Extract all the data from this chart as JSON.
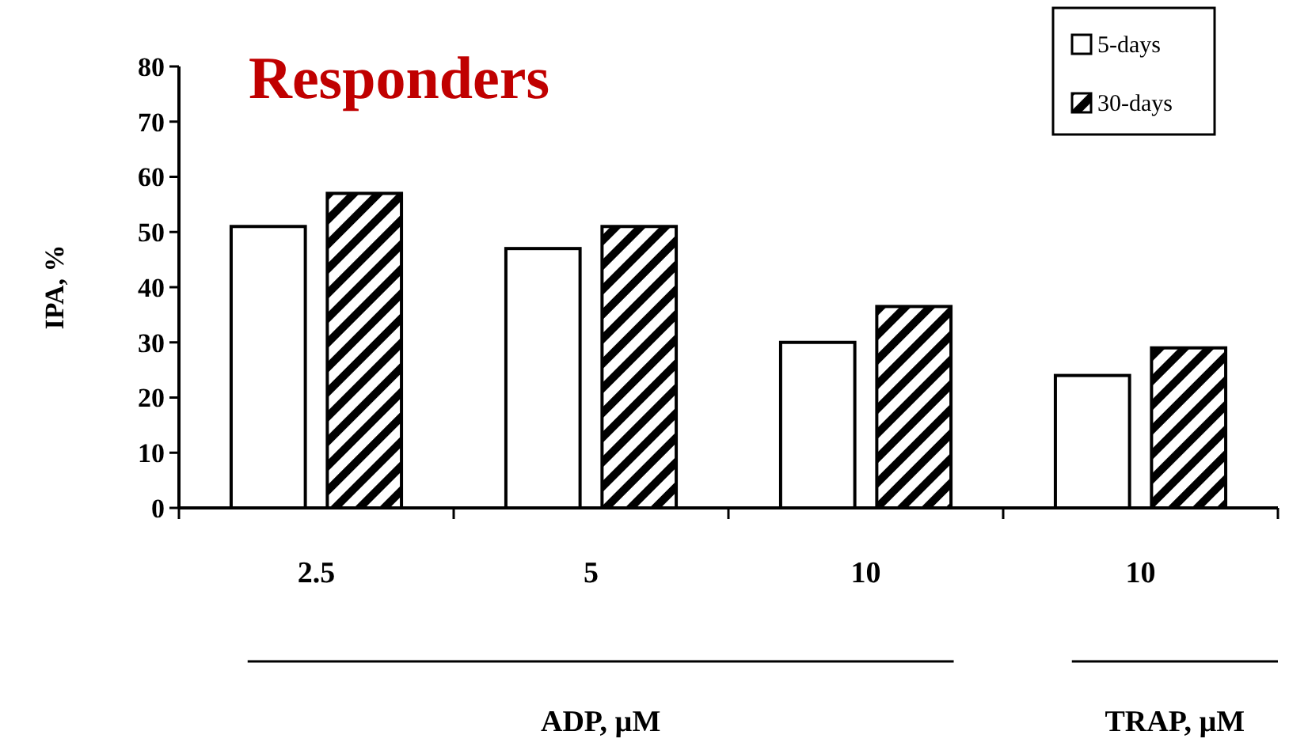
{
  "chart_data": {
    "type": "bar",
    "title": "Responders",
    "ylabel": "IPA, %",
    "categories": [
      "2.5",
      "5",
      "10",
      "10"
    ],
    "series": [
      {
        "name": "5-days",
        "color": "#ffffff",
        "values": [
          51,
          47,
          30,
          24
        ]
      },
      {
        "name": "30-days",
        "color": "#000000",
        "values": [
          57,
          51,
          36.5,
          29
        ]
      }
    ],
    "ylim": [
      0,
      80
    ],
    "yticks": [
      0,
      10,
      20,
      30,
      40,
      50,
      60,
      70,
      80
    ],
    "annotations": [
      "ADP, µM",
      "TRAP, µM"
    ],
    "legend": "top right"
  }
}
